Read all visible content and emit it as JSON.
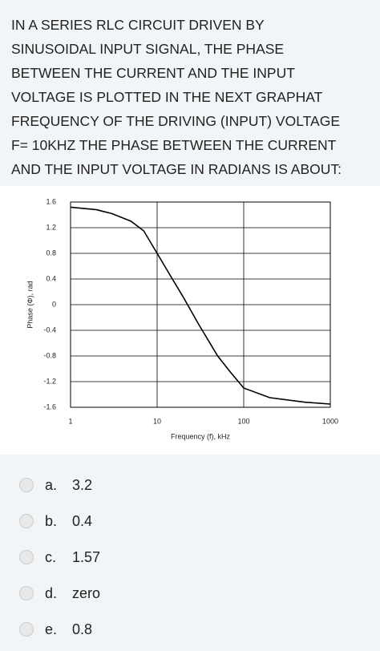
{
  "question_lines": [
    "IN A SERIES RLC CIRCUIT DRIVEN BY",
    "SINUSOIDAL INPUT SIGNAL, THE PHASE",
    "BETWEEN THE CURRENT AND THE INPUT",
    "VOLTAGE IS PLOTTED IN THE NEXT GRAPHAT",
    "FREQUENCY OF THE DRIVING (INPUT) VOLTAGE",
    "F= 10KHZ THE PHASE BETWEEN THE CURRENT",
    "AND THE INPUT VOLTAGE IN RADIANS IS ABOUT:"
  ],
  "chart_data": {
    "type": "line",
    "x_label": "Frequency (f), kHz",
    "y_label": "Phase (Φ), rad",
    "x": [
      1,
      2,
      3,
      5,
      7,
      10,
      15,
      20,
      30,
      50,
      70,
      100,
      200,
      500,
      1000
    ],
    "values": [
      1.52,
      1.48,
      1.42,
      1.3,
      1.15,
      0.8,
      0.4,
      0.12,
      -0.3,
      -0.8,
      -1.05,
      -1.3,
      -1.45,
      -1.52,
      -1.55
    ],
    "color": "#000000",
    "log_x": true,
    "grid": true,
    "xlim": [
      1,
      1000
    ],
    "xticks": [
      1,
      10,
      100,
      1000
    ],
    "ylim": [
      -1.6,
      1.6
    ],
    "yticks": [
      1.6,
      1.2,
      0.8,
      0.4,
      0,
      -0.4,
      -0.8,
      -1.2,
      -1.6
    ]
  },
  "options": [
    {
      "letter": "a.",
      "text": "3.2"
    },
    {
      "letter": "b.",
      "text": "0.4"
    },
    {
      "letter": "c.",
      "text": "1.57"
    },
    {
      "letter": "d.",
      "text": "zero"
    },
    {
      "letter": "e.",
      "text": "0.8"
    }
  ]
}
